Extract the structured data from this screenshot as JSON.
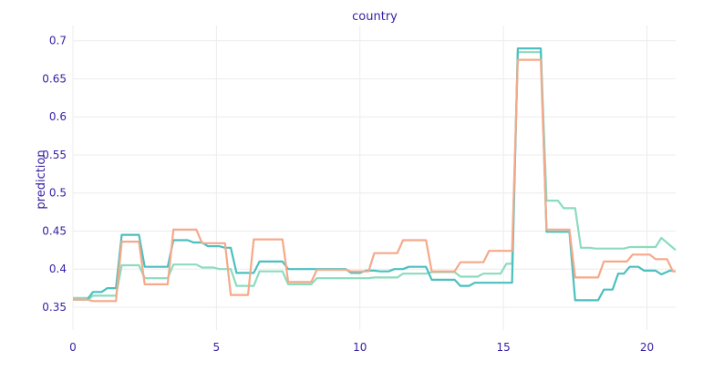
{
  "chart_data": {
    "type": "line",
    "title": "country",
    "xlabel": "",
    "ylabel": "prediction",
    "xlim": [
      0,
      21
    ],
    "ylim": [
      0.32,
      0.72
    ],
    "xticks": [
      0,
      5,
      10,
      15,
      20
    ],
    "yticks": [
      0.35,
      0.4,
      0.45,
      0.5,
      0.55,
      0.6,
      0.65,
      0.7
    ],
    "grid": true,
    "legend": "none",
    "series": [
      {
        "color": "#8bdcbe",
        "x": [
          0,
          0.6,
          0.7,
          1.5,
          1.7,
          2.3,
          2.5,
          3.3,
          3.5,
          4.3,
          4.5,
          4.9,
          5.1,
          5.5,
          5.7,
          6.3,
          6.5,
          7.3,
          7.5,
          8.3,
          8.5,
          9.3,
          9.5,
          10.3,
          10.5,
          11.3,
          11.5,
          12.3,
          12.5,
          13.3,
          13.5,
          14.1,
          14.3,
          14.9,
          15.1,
          15.3,
          15.5,
          16.3,
          16.5,
          16.9,
          17.1,
          17.5,
          17.7,
          18.0,
          18.2,
          19.2,
          19.4,
          20.3,
          20.5,
          21
        ],
        "values": [
          0.362,
          0.362,
          0.365,
          0.365,
          0.405,
          0.405,
          0.388,
          0.388,
          0.406,
          0.406,
          0.402,
          0.402,
          0.4,
          0.4,
          0.378,
          0.378,
          0.397,
          0.397,
          0.38,
          0.38,
          0.388,
          0.388,
          0.388,
          0.388,
          0.389,
          0.389,
          0.394,
          0.394,
          0.396,
          0.396,
          0.39,
          0.39,
          0.394,
          0.394,
          0.407,
          0.407,
          0.685,
          0.685,
          0.49,
          0.49,
          0.48,
          0.48,
          0.428,
          0.428,
          0.427,
          0.427,
          0.429,
          0.429,
          0.441,
          0.425
        ]
      },
      {
        "color": "#4cbfbf",
        "x": [
          0,
          0.5,
          0.7,
          1.0,
          1.2,
          1.5,
          1.7,
          2.3,
          2.5,
          3.3,
          3.5,
          4.0,
          4.2,
          4.5,
          4.7,
          5.1,
          5.3,
          5.5,
          5.7,
          6.3,
          6.5,
          7.3,
          7.5,
          8.3,
          8.5,
          9.5,
          9.7,
          10.0,
          10.2,
          10.5,
          10.7,
          11.0,
          11.2,
          11.5,
          11.7,
          12.3,
          12.5,
          13.3,
          13.5,
          13.8,
          14.0,
          15.3,
          15.5,
          16.3,
          16.5,
          17.3,
          17.5,
          18.3,
          18.5,
          18.8,
          19.0,
          19.2,
          19.4,
          19.7,
          19.9,
          20.3,
          20.5,
          20.8,
          21
        ],
        "values": [
          0.36,
          0.36,
          0.37,
          0.37,
          0.375,
          0.375,
          0.445,
          0.445,
          0.403,
          0.403,
          0.438,
          0.438,
          0.435,
          0.435,
          0.43,
          0.43,
          0.428,
          0.428,
          0.395,
          0.395,
          0.41,
          0.41,
          0.4,
          0.4,
          0.4,
          0.4,
          0.395,
          0.395,
          0.398,
          0.398,
          0.397,
          0.397,
          0.4,
          0.4,
          0.403,
          0.403,
          0.386,
          0.386,
          0.378,
          0.378,
          0.382,
          0.382,
          0.69,
          0.69,
          0.449,
          0.449,
          0.359,
          0.359,
          0.373,
          0.373,
          0.394,
          0.394,
          0.403,
          0.403,
          0.398,
          0.398,
          0.393,
          0.398,
          0.397
        ]
      },
      {
        "color": "#f5a98a",
        "x": [
          0,
          0.5,
          0.7,
          1.5,
          1.7,
          2.3,
          2.5,
          3.3,
          3.5,
          4.3,
          4.5,
          5.3,
          5.5,
          6.1,
          6.3,
          7.3,
          7.5,
          8.3,
          8.5,
          9.5,
          9.7,
          10.3,
          10.5,
          11.3,
          11.5,
          12.3,
          12.5,
          13.3,
          13.5,
          14.3,
          14.5,
          15.1,
          15.3,
          15.5,
          16.3,
          16.5,
          17.3,
          17.5,
          18.3,
          18.5,
          19.3,
          19.5,
          20.1,
          20.3,
          20.7,
          20.9,
          21
        ],
        "values": [
          0.36,
          0.36,
          0.358,
          0.358,
          0.436,
          0.436,
          0.38,
          0.38,
          0.452,
          0.452,
          0.434,
          0.434,
          0.366,
          0.366,
          0.439,
          0.439,
          0.383,
          0.383,
          0.399,
          0.399,
          0.397,
          0.397,
          0.421,
          0.421,
          0.438,
          0.438,
          0.397,
          0.397,
          0.409,
          0.409,
          0.424,
          0.424,
          0.424,
          0.675,
          0.675,
          0.452,
          0.452,
          0.389,
          0.389,
          0.41,
          0.41,
          0.419,
          0.419,
          0.413,
          0.413,
          0.397,
          0.397
        ]
      }
    ]
  }
}
